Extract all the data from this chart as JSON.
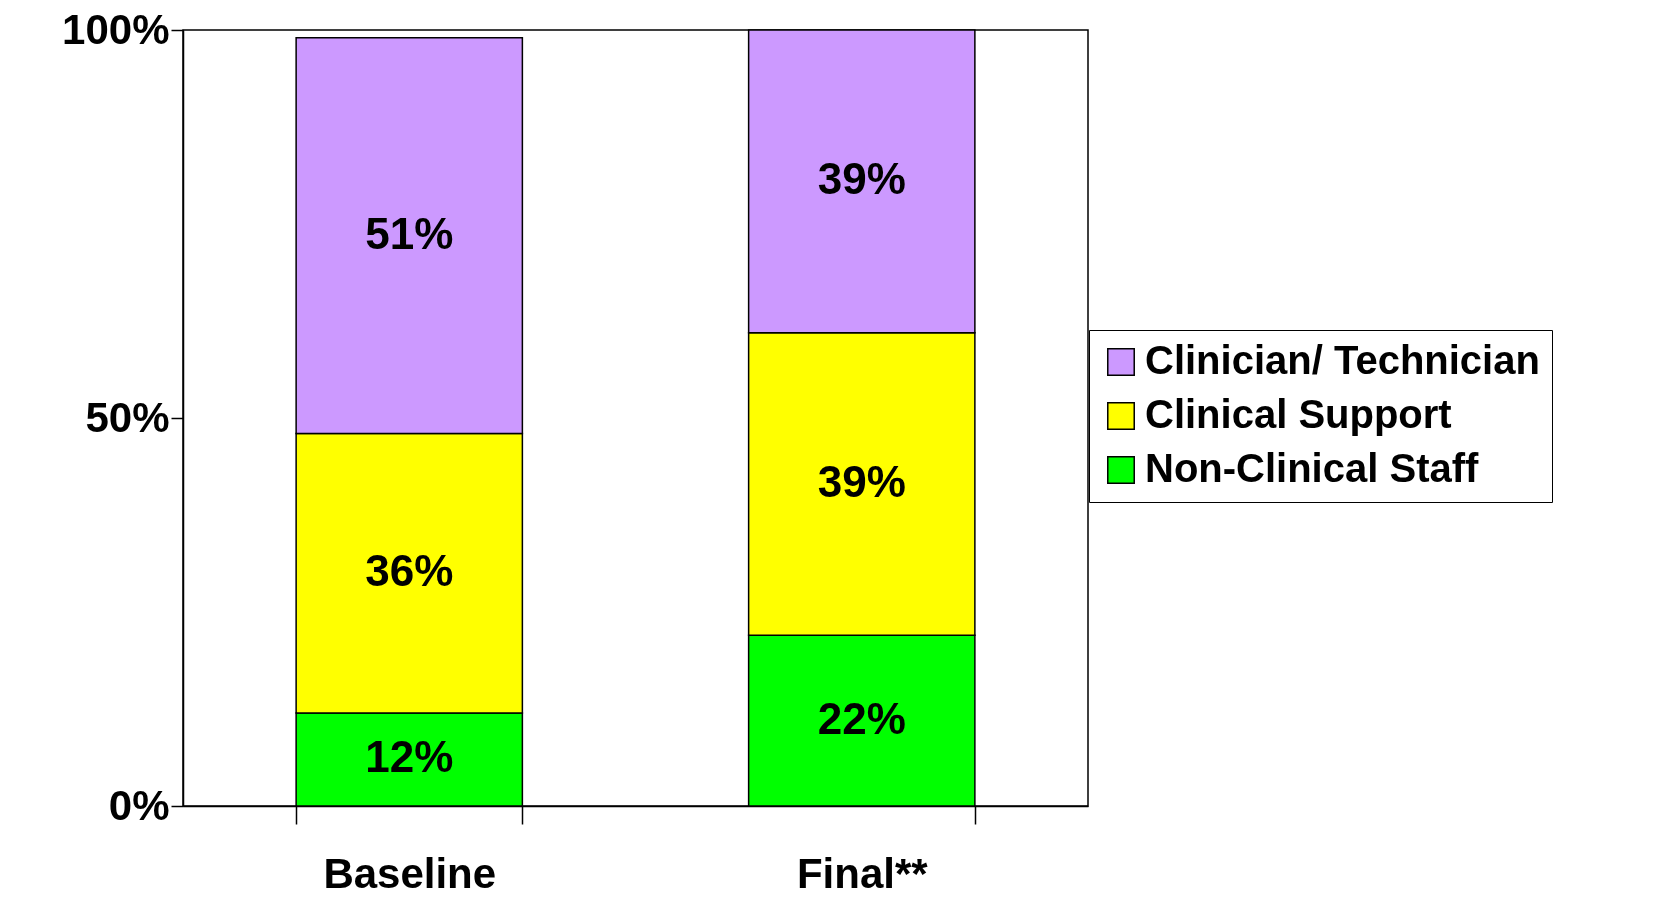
{
  "chart_data": {
    "type": "bar",
    "stacked": true,
    "categories": [
      "Baseline",
      "Final**"
    ],
    "series": [
      {
        "name": "Non-Clinical Staff",
        "color": "#00ff00",
        "values": [
          12,
          22
        ],
        "value_labels": [
          "12%",
          "22%"
        ]
      },
      {
        "name": "Clinical Support",
        "color": "#ffff00",
        "values": [
          36,
          39
        ],
        "value_labels": [
          "36%",
          "39%"
        ]
      },
      {
        "name": "Clinician/ Technician",
        "color": "#cc99ff",
        "values": [
          51,
          39
        ],
        "value_labels": [
          "51%",
          "39%"
        ]
      }
    ],
    "ylim": [
      0,
      100
    ],
    "yticks": [
      {
        "value": 0,
        "label": "0%"
      },
      {
        "value": 50,
        "label": "50%"
      },
      {
        "value": 100,
        "label": "100%"
      }
    ],
    "grid": false,
    "legend": "right"
  }
}
